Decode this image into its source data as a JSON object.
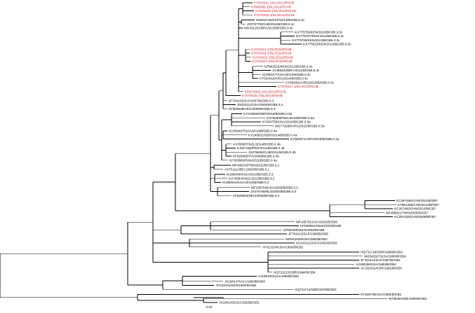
{
  "colors": {
    "branch": "#000000",
    "label_default": "#000000",
    "label_highlight": "#e8141e"
  },
  "scale_bar": {
    "label": "0.02"
  },
  "leaves": [
    {
      "label": "KY078411.1/DL/2011/RSVB",
      "red": true
    },
    {
      "label": "KJ690589.1/DL/2010/RSVB",
      "red": true
    },
    {
      "label": "KY649150.1/DL/2014/RSVB",
      "red": true
    },
    {
      "label": "KY078420.1/DL/2011/RSVB",
      "red": true
    },
    {
      "label": "KM402730/ESP/2014/B/GB5.0.4c",
      "red": false
    },
    {
      "label": "JX076778/CUB/2011/B/GB5.0.4c",
      "red": false
    },
    {
      "label": "MG431251/BRA/2016/B/GB5.0.4c",
      "red": false
    },
    {
      "label": "KX775755/KEN/2013/B/GB5.0.5c",
      "red": false
    },
    {
      "label": "KX775767/KEN/2013/B/GB5.0.5c",
      "red": false
    },
    {
      "label": "KX775768/KEN/2013/B/GB5.0.5c",
      "red": false
    },
    {
      "label": "KX775615/KEN/2014/B/GB5.0.5c",
      "red": false
    },
    {
      "label": "KY078414.1/DL/2011/RSVB",
      "red": true
    },
    {
      "label": "KY078416.1/DL/2011/RSVB",
      "red": true
    },
    {
      "label": "KY078412.1/DL/2011/RSVB",
      "red": true
    },
    {
      "label": "KY078413.1/DL/2011/RSVB",
      "red": true
    },
    {
      "label": "KP862515/KEN/2012/B/GB5.0.4c",
      "red": false
    },
    {
      "label": "JX469420/BRA/2011/B/GB5.0.4c",
      "red": false
    },
    {
      "label": "KU950477/USA/2014/B/GB5.0.4c",
      "red": false
    },
    {
      "label": "KY534410/ARG/2014/B/GB5.0.4c",
      "red": false
    },
    {
      "label": "KY634391/ARG/2015/B/GB5.0.4c",
      "red": false
    },
    {
      "label": "KY078417.1/DL/2012/RSVB",
      "red": true
    },
    {
      "label": "KM274883.1/KA/2012/RSVB",
      "red": true
    },
    {
      "label": "KY078425.1/DL/2014/RSVB",
      "red": true
    },
    {
      "label": "JF704224/ZAF/2007/B/GB5.0.3",
      "red": false
    },
    {
      "label": "JN032111/USA/2009/B/GB5.0.3",
      "red": false
    },
    {
      "label": "KF826838/ARG/2006/B/GB5.0.3",
      "red": false
    },
    {
      "label": "KY249583/GBR/2016/B/GB5.0.5a",
      "red": false
    },
    {
      "label": "KX765968/NZL/2015/B/GB5.0.5a",
      "red": false
    },
    {
      "label": "KY604756/USA/2016/B/GB5.0.5a",
      "red": false
    },
    {
      "label": "MG773268/ARG/2015/B/GB5.0.5a",
      "red": false
    },
    {
      "label": "KU356467/USA/2014/B/GB5.0.4a",
      "red": false
    },
    {
      "label": "KY240631/GBR/2014/B/GB5.0.4a",
      "red": false
    },
    {
      "label": "KY683371/ARG/2015/B/GB5.0.4a",
      "red": false
    },
    {
      "label": "KX765967/NZL/2014/B/GB5.0.4b",
      "red": false
    },
    {
      "label": "KJ627285/PER/2011/B/GB5.0.4b",
      "red": false
    },
    {
      "label": "JX076936/CUB/2011/B/GB5.0.4b",
      "red": false
    },
    {
      "label": "KF926665/ITA/2009/B/GB5.0.4b",
      "red": false
    },
    {
      "label": "KF300963/PAN/2011/B/GB5.0.4a",
      "red": false
    },
    {
      "label": "MF496143/TWN/2011/B/GB5.0.1",
      "red": false
    },
    {
      "label": "AY751111/BEL/2003/B/GB5.0.1",
      "red": false
    },
    {
      "label": "KU950484/USA/2013/B/GB5.0.2",
      "red": false
    },
    {
      "label": "KX765943/NZL/2013/B/GB5.0.2",
      "red": false
    },
    {
      "label": "KU950619/USA/2012/B/GB5.0.2",
      "red": false
    },
    {
      "label": "MF185754/USA/2003/B/GB5.0.0",
      "red": false
    },
    {
      "label": "JX576768/NLD/2003/B/GB5.0.0",
      "red": false
    },
    {
      "label": "KF826853/DEU/2008/B/GB5.0.0",
      "red": false
    },
    {
      "label": "KC297486/CHN/2011/B/GB7",
      "red": false
    },
    {
      "label": "KT961406/CHN/2014/B/GB7",
      "red": false
    },
    {
      "label": "KC297482/CHN/2010/B/GB7",
      "red": false
    },
    {
      "label": "MF496821/TWN/2005/B/GB7",
      "red": false
    },
    {
      "label": "KC297428/CHN/2009/B/GB7",
      "red": false
    },
    {
      "label": "MF185751/USA/2002/B/GB6",
      "red": false
    },
    {
      "label": "KP828062/KEN/2003/B/GB6",
      "red": false
    },
    {
      "label": "KP862090/KEN/2004/B/GB6",
      "red": false
    },
    {
      "label": "JF704213/ZAF/1998/B/GB6",
      "red": false
    },
    {
      "label": "MG642043/USA/1982/B/GB2",
      "red": false
    },
    {
      "label": "KU316121/USA/1991/B/GB2",
      "red": false
    },
    {
      "label": "AF013254/USA/1985/B/GB2",
      "red": false
    },
    {
      "label": "HQ731718/GBR/1988/B/GB2",
      "red": false
    },
    {
      "label": "MG642927/USA/1996/B/GB4",
      "red": false
    },
    {
      "label": "JF704214/ZAF/1997/B/GB4",
      "red": false
    },
    {
      "label": "AJ198168/USA/1993/B/GB4",
      "red": false
    },
    {
      "label": "AF155331/KOR/1991/B/GB4",
      "red": false
    },
    {
      "label": "HQ731122/GBR/1994/B/GB4",
      "red": false
    },
    {
      "label": "AJ198160/USA/1993/B/GB3",
      "red": false
    },
    {
      "label": "JX198147/USA/1993/B/GB3",
      "red": false
    },
    {
      "label": "AF233331/KEN/1990/B/GB3",
      "red": false
    },
    {
      "label": "HQ731714/GBR/1976/B/GB1",
      "red": false
    },
    {
      "label": "KF258738/USA/1982/B/GB1",
      "red": false
    },
    {
      "label": "M73545/SWE/1960/B/GB1",
      "red": false
    },
    {
      "label": "JX198143/USA/1962/B/GB1",
      "red": false
    }
  ]
}
